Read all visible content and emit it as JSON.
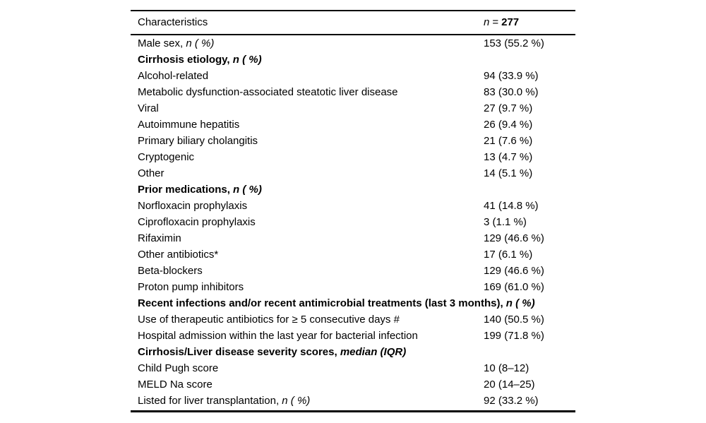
{
  "page": {
    "background_color": "#ffffff",
    "text_color": "#000000"
  },
  "table": {
    "header": {
      "characteristics": "Characteristics",
      "n_symbol": "n",
      "equals": "=",
      "count": "277"
    },
    "rows": [
      {
        "label": "Male sex, ",
        "suffix": "n ( %)",
        "value": "153 (55.2 %)",
        "section": false
      },
      {
        "label": "Cirrhosis etiology, ",
        "suffix": "n ( %)",
        "value": "",
        "section": true
      },
      {
        "label": "Alcohol-related",
        "suffix": "",
        "value": "94 (33.9 %)",
        "section": false
      },
      {
        "label": "Metabolic dysfunction-associated steatotic liver disease",
        "suffix": "",
        "value": "83 (30.0 %)",
        "section": false
      },
      {
        "label": "Viral",
        "suffix": "",
        "value": "27 (9.7 %)",
        "section": false
      },
      {
        "label": "Autoimmune hepatitis",
        "suffix": "",
        "value": "26 (9.4 %)",
        "section": false
      },
      {
        "label": "Primary biliary cholangitis",
        "suffix": "",
        "value": "21 (7.6 %)",
        "section": false
      },
      {
        "label": "Cryptogenic",
        "suffix": "",
        "value": "13 (4.7 %)",
        "section": false
      },
      {
        "label": "Other",
        "suffix": "",
        "value": "14 (5.1 %)",
        "section": false
      },
      {
        "label": "Prior medications, ",
        "suffix": "n ( %)",
        "value": "",
        "section": true
      },
      {
        "label": "Norfloxacin prophylaxis",
        "suffix": "",
        "value": "41 (14.8 %)",
        "section": false
      },
      {
        "label": "Ciprofloxacin prophylaxis",
        "suffix": "",
        "value": "3 (1.1 %)",
        "section": false
      },
      {
        "label": "Rifaximin",
        "suffix": "",
        "value": "129 (46.6 %)",
        "section": false
      },
      {
        "label": "Other antibiotics*",
        "suffix": "",
        "value": "17 (6.1 %)",
        "section": false
      },
      {
        "label": "Beta-blockers",
        "suffix": "",
        "value": "129 (46.6 %)",
        "section": false
      },
      {
        "label": "Proton pump inhibitors",
        "suffix": "",
        "value": "169 (61.0 %)",
        "section": false
      },
      {
        "label": "Recent infections and/or recent antimicrobial treatments (last 3 months), ",
        "suffix": "n ( %)",
        "value": "",
        "section": true
      },
      {
        "label": "Use of therapeutic antibiotics for ≥ 5 consecutive days #",
        "suffix": "",
        "value": "140 (50.5 %)",
        "section": false
      },
      {
        "label": "Hospital admission within the last year for bacterial infection",
        "suffix": "",
        "value": "199 (71.8 %)",
        "section": false
      },
      {
        "label": "Cirrhosis/Liver disease severity scores, ",
        "suffix": "median (IQR)",
        "value": "",
        "section": true
      },
      {
        "label": "Child Pugh score",
        "suffix": "",
        "value": "10 (8–12)",
        "section": false
      },
      {
        "label": "MELD Na score",
        "suffix": "",
        "value": "20 (14–25)",
        "section": false
      },
      {
        "label": "Listed for liver transplantation, ",
        "suffix": "n ( %)",
        "value": "92 (33.2 %)",
        "section": false
      }
    ]
  }
}
